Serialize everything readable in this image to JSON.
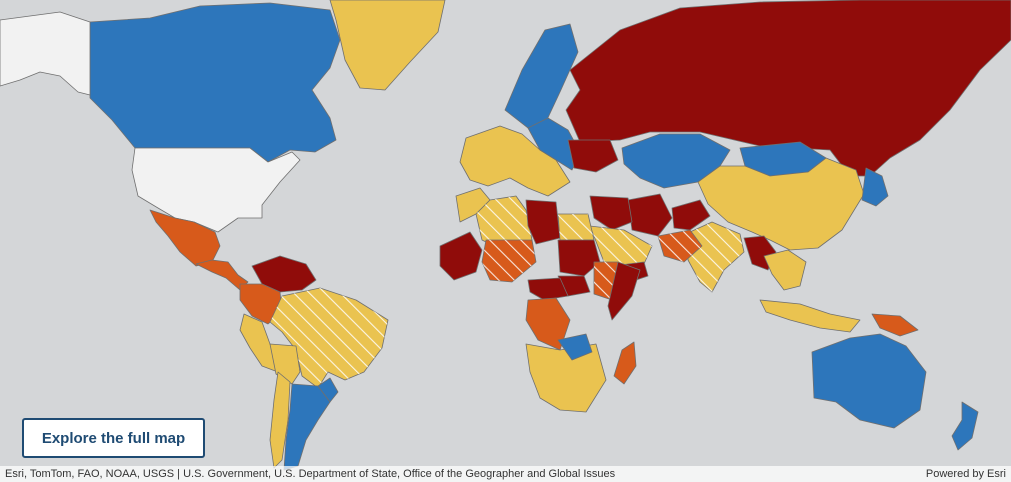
{
  "map": {
    "legend_colors": {
      "level_1": "#2d76bb",
      "level_2": "#eac350",
      "level_3": "#d75a1b",
      "level_4": "#900c0a",
      "no_data": "#f2f2f2",
      "water": "#d4d6d8",
      "hatch": "#ffffff"
    },
    "regions": [
      {
        "name": "Canada",
        "level": "level_1"
      },
      {
        "name": "United States",
        "level": "no_data"
      },
      {
        "name": "Alaska",
        "level": "no_data"
      },
      {
        "name": "Greenland",
        "level": "level_2"
      },
      {
        "name": "Mexico",
        "level": "level_3"
      },
      {
        "name": "Central America",
        "level": "level_3"
      },
      {
        "name": "Venezuela",
        "level": "level_4"
      },
      {
        "name": "Colombia",
        "level": "level_3"
      },
      {
        "name": "Brazil",
        "level": "level_2",
        "hatched": true
      },
      {
        "name": "Peru",
        "level": "level_2"
      },
      {
        "name": "Bolivia",
        "level": "level_2"
      },
      {
        "name": "Chile",
        "level": "level_2"
      },
      {
        "name": "Argentina",
        "level": "level_1"
      },
      {
        "name": "Uruguay",
        "level": "level_1"
      },
      {
        "name": "Western Europe",
        "level": "level_2"
      },
      {
        "name": "Scandinavia",
        "level": "level_1"
      },
      {
        "name": "Eastern Europe",
        "level": "level_1"
      },
      {
        "name": "Russia",
        "level": "level_4"
      },
      {
        "name": "Ukraine",
        "level": "level_4"
      },
      {
        "name": "Kazakhstan",
        "level": "level_1"
      },
      {
        "name": "Mongolia",
        "level": "level_1"
      },
      {
        "name": "China",
        "level": "level_2"
      },
      {
        "name": "Japan",
        "level": "level_1"
      },
      {
        "name": "India",
        "level": "level_2",
        "hatched": true
      },
      {
        "name": "Pakistan",
        "level": "level_3",
        "hatched": true
      },
      {
        "name": "Afghanistan",
        "level": "level_4"
      },
      {
        "name": "Iran",
        "level": "level_4"
      },
      {
        "name": "Iraq and Syria",
        "level": "level_4"
      },
      {
        "name": "Saudi Arabia",
        "level": "level_2",
        "hatched": true
      },
      {
        "name": "Yemen",
        "level": "level_4"
      },
      {
        "name": "Myanmar",
        "level": "level_4"
      },
      {
        "name": "Southeast Asia",
        "level": "level_2"
      },
      {
        "name": "Indonesia",
        "level": "level_2"
      },
      {
        "name": "Papua New Guinea",
        "level": "level_3"
      },
      {
        "name": "Australia",
        "level": "level_1"
      },
      {
        "name": "New Zealand",
        "level": "level_1"
      },
      {
        "name": "Morocco",
        "level": "level_2"
      },
      {
        "name": "Algeria",
        "level": "level_2",
        "hatched": true
      },
      {
        "name": "Libya",
        "level": "level_4"
      },
      {
        "name": "Egypt",
        "level": "level_2",
        "hatched": true
      },
      {
        "name": "Mali",
        "level": "level_4"
      },
      {
        "name": "Niger",
        "level": "level_3",
        "hatched": true
      },
      {
        "name": "Sudan",
        "level": "level_4"
      },
      {
        "name": "South Sudan",
        "level": "level_4"
      },
      {
        "name": "Ethiopia",
        "level": "level_3",
        "hatched": true
      },
      {
        "name": "Somalia",
        "level": "level_4"
      },
      {
        "name": "Central African Republic",
        "level": "level_4"
      },
      {
        "name": "DR Congo",
        "level": "level_3"
      },
      {
        "name": "Southern Africa",
        "level": "level_2"
      },
      {
        "name": "Zambia",
        "level": "level_1"
      },
      {
        "name": "Madagascar",
        "level": "level_3"
      }
    ]
  },
  "explore_button": {
    "label": "Explore the full map"
  },
  "attribution": {
    "text": "Esri, TomTom, FAO, NOAA, USGS | U.S. Government, U.S. Department of State, Office of the Geographer and Global Issues",
    "powered_by": "Powered by Esri"
  }
}
